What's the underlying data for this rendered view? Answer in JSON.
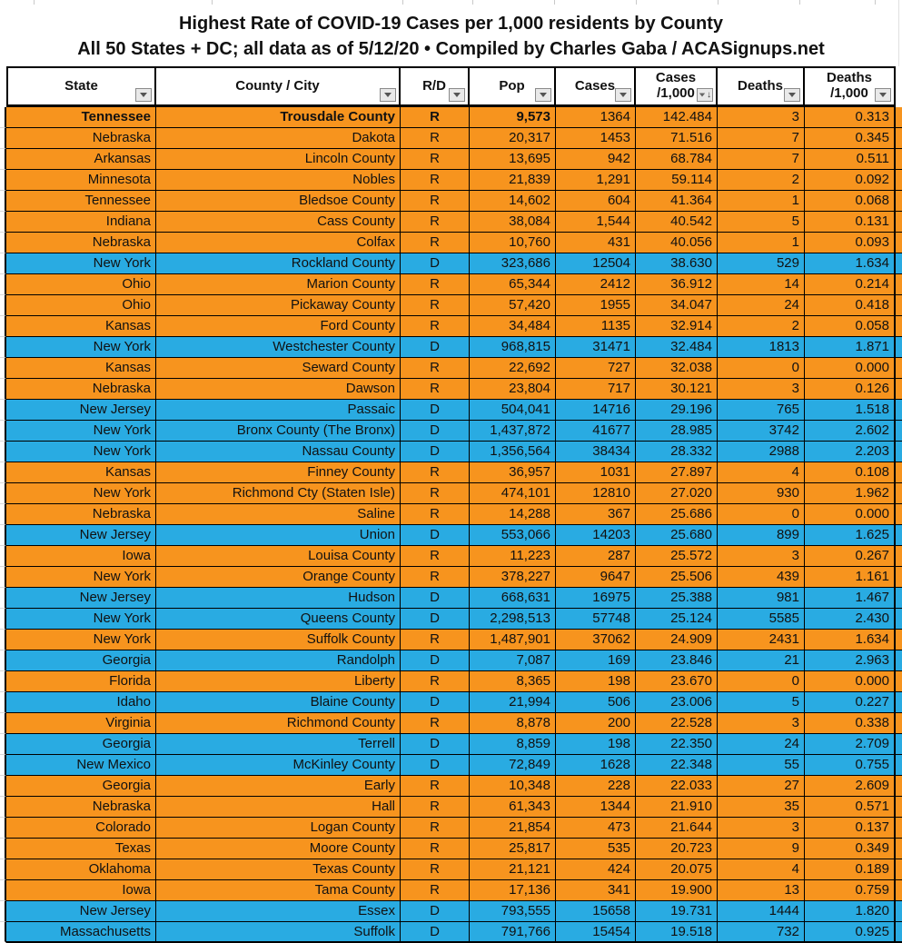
{
  "title": {
    "line1": "Highest Rate of COVID-19 Cases per 1,000 residents by County",
    "line2": "All 50 States + DC; all data as of 5/12/20  • Compiled by Charles Gaba / ACASignups.net"
  },
  "colors": {
    "republican_row": "#F7941E",
    "democrat_row": "#29ABE2",
    "grid_border": "#000000",
    "faint_gridline": "#D9D9D9"
  },
  "table": {
    "columns": [
      {
        "label": "State"
      },
      {
        "label": "County / City"
      },
      {
        "label": "R/D"
      },
      {
        "label": "Pop"
      },
      {
        "label": "Cases"
      },
      {
        "label": "Cases",
        "label2": "/1,000",
        "sorted": "descending"
      },
      {
        "label": "Deaths"
      },
      {
        "label": "Deaths",
        "label2": "/1,000"
      }
    ],
    "rows": [
      {
        "state": "Tennessee",
        "county": "Trousdale County",
        "rd": "R",
        "pop": "9,573",
        "cases": "1364",
        "cases_per_1000": "142.484",
        "deaths": "3",
        "deaths_per_1000": "0.313",
        "bold": true
      },
      {
        "state": "Nebraska",
        "county": "Dakota",
        "rd": "R",
        "pop": "20,317",
        "cases": "1453",
        "cases_per_1000": "71.516",
        "deaths": "7",
        "deaths_per_1000": "0.345"
      },
      {
        "state": "Arkansas",
        "county": "Lincoln County",
        "rd": "R",
        "pop": "13,695",
        "cases": "942",
        "cases_per_1000": "68.784",
        "deaths": "7",
        "deaths_per_1000": "0.511"
      },
      {
        "state": "Minnesota",
        "county": "Nobles",
        "rd": "R",
        "pop": "21,839",
        "cases": "1,291",
        "cases_per_1000": "59.114",
        "deaths": "2",
        "deaths_per_1000": "0.092"
      },
      {
        "state": "Tennessee",
        "county": "Bledsoe County",
        "rd": "R",
        "pop": "14,602",
        "cases": "604",
        "cases_per_1000": "41.364",
        "deaths": "1",
        "deaths_per_1000": "0.068"
      },
      {
        "state": "Indiana",
        "county": "Cass County",
        "rd": "R",
        "pop": "38,084",
        "cases": "1,544",
        "cases_per_1000": "40.542",
        "deaths": "5",
        "deaths_per_1000": "0.131"
      },
      {
        "state": "Nebraska",
        "county": "Colfax",
        "rd": "R",
        "pop": "10,760",
        "cases": "431",
        "cases_per_1000": "40.056",
        "deaths": "1",
        "deaths_per_1000": "0.093"
      },
      {
        "state": "New York",
        "county": "Rockland County",
        "rd": "D",
        "pop": "323,686",
        "cases": "12504",
        "cases_per_1000": "38.630",
        "deaths": "529",
        "deaths_per_1000": "1.634"
      },
      {
        "state": "Ohio",
        "county": "Marion County",
        "rd": "R",
        "pop": "65,344",
        "cases": "2412",
        "cases_per_1000": "36.912",
        "deaths": "14",
        "deaths_per_1000": "0.214"
      },
      {
        "state": "Ohio",
        "county": "Pickaway County",
        "rd": "R",
        "pop": "57,420",
        "cases": "1955",
        "cases_per_1000": "34.047",
        "deaths": "24",
        "deaths_per_1000": "0.418"
      },
      {
        "state": "Kansas",
        "county": "Ford County",
        "rd": "R",
        "pop": "34,484",
        "cases": "1135",
        "cases_per_1000": "32.914",
        "deaths": "2",
        "deaths_per_1000": "0.058"
      },
      {
        "state": "New York",
        "county": "Westchester County",
        "rd": "D",
        "pop": "968,815",
        "cases": "31471",
        "cases_per_1000": "32.484",
        "deaths": "1813",
        "deaths_per_1000": "1.871"
      },
      {
        "state": "Kansas",
        "county": "Seward County",
        "rd": "R",
        "pop": "22,692",
        "cases": "727",
        "cases_per_1000": "32.038",
        "deaths": "0",
        "deaths_per_1000": "0.000"
      },
      {
        "state": "Nebraska",
        "county": "Dawson",
        "rd": "R",
        "pop": "23,804",
        "cases": "717",
        "cases_per_1000": "30.121",
        "deaths": "3",
        "deaths_per_1000": "0.126"
      },
      {
        "state": "New Jersey",
        "county": "Passaic",
        "rd": "D",
        "pop": "504,041",
        "cases": "14716",
        "cases_per_1000": "29.196",
        "deaths": "765",
        "deaths_per_1000": "1.518"
      },
      {
        "state": "New York",
        "county": "Bronx County (The Bronx)",
        "rd": "D",
        "pop": "1,437,872",
        "cases": "41677",
        "cases_per_1000": "28.985",
        "deaths": "3742",
        "deaths_per_1000": "2.602"
      },
      {
        "state": "New York",
        "county": "Nassau County",
        "rd": "D",
        "pop": "1,356,564",
        "cases": "38434",
        "cases_per_1000": "28.332",
        "deaths": "2988",
        "deaths_per_1000": "2.203"
      },
      {
        "state": "Kansas",
        "county": "Finney County",
        "rd": "R",
        "pop": "36,957",
        "cases": "1031",
        "cases_per_1000": "27.897",
        "deaths": "4",
        "deaths_per_1000": "0.108"
      },
      {
        "state": "New York",
        "county": "Richmond Cty (Staten Isle)",
        "rd": "R",
        "pop": "474,101",
        "cases": "12810",
        "cases_per_1000": "27.020",
        "deaths": "930",
        "deaths_per_1000": "1.962"
      },
      {
        "state": "Nebraska",
        "county": "Saline",
        "rd": "R",
        "pop": "14,288",
        "cases": "367",
        "cases_per_1000": "25.686",
        "deaths": "0",
        "deaths_per_1000": "0.000"
      },
      {
        "state": "New Jersey",
        "county": "Union",
        "rd": "D",
        "pop": "553,066",
        "cases": "14203",
        "cases_per_1000": "25.680",
        "deaths": "899",
        "deaths_per_1000": "1.625"
      },
      {
        "state": "Iowa",
        "county": "Louisa County",
        "rd": "R",
        "pop": "11,223",
        "cases": "287",
        "cases_per_1000": "25.572",
        "deaths": "3",
        "deaths_per_1000": "0.267"
      },
      {
        "state": "New York",
        "county": "Orange County",
        "rd": "R",
        "pop": "378,227",
        "cases": "9647",
        "cases_per_1000": "25.506",
        "deaths": "439",
        "deaths_per_1000": "1.161"
      },
      {
        "state": "New Jersey",
        "county": "Hudson",
        "rd": "D",
        "pop": "668,631",
        "cases": "16975",
        "cases_per_1000": "25.388",
        "deaths": "981",
        "deaths_per_1000": "1.467"
      },
      {
        "state": "New York",
        "county": "Queens County",
        "rd": "D",
        "pop": "2,298,513",
        "cases": "57748",
        "cases_per_1000": "25.124",
        "deaths": "5585",
        "deaths_per_1000": "2.430"
      },
      {
        "state": "New York",
        "county": "Suffolk County",
        "rd": "R",
        "pop": "1,487,901",
        "cases": "37062",
        "cases_per_1000": "24.909",
        "deaths": "2431",
        "deaths_per_1000": "1.634"
      },
      {
        "state": "Georgia",
        "county": "Randolph",
        "rd": "D",
        "pop": "7,087",
        "cases": "169",
        "cases_per_1000": "23.846",
        "deaths": "21",
        "deaths_per_1000": "2.963"
      },
      {
        "state": "Florida",
        "county": "Liberty",
        "rd": "R",
        "pop": "8,365",
        "cases": "198",
        "cases_per_1000": "23.670",
        "deaths": "0",
        "deaths_per_1000": "0.000"
      },
      {
        "state": "Idaho",
        "county": "Blaine County",
        "rd": "D",
        "pop": "21,994",
        "cases": "506",
        "cases_per_1000": "23.006",
        "deaths": "5",
        "deaths_per_1000": "0.227"
      },
      {
        "state": "Virginia",
        "county": "Richmond County",
        "rd": "R",
        "pop": "8,878",
        "cases": "200",
        "cases_per_1000": "22.528",
        "deaths": "3",
        "deaths_per_1000": "0.338"
      },
      {
        "state": "Georgia",
        "county": "Terrell",
        "rd": "D",
        "pop": "8,859",
        "cases": "198",
        "cases_per_1000": "22.350",
        "deaths": "24",
        "deaths_per_1000": "2.709"
      },
      {
        "state": "New Mexico",
        "county": "McKinley County",
        "rd": "D",
        "pop": "72,849",
        "cases": "1628",
        "cases_per_1000": "22.348",
        "deaths": "55",
        "deaths_per_1000": "0.755"
      },
      {
        "state": "Georgia",
        "county": "Early",
        "rd": "R",
        "pop": "10,348",
        "cases": "228",
        "cases_per_1000": "22.033",
        "deaths": "27",
        "deaths_per_1000": "2.609"
      },
      {
        "state": "Nebraska",
        "county": "Hall",
        "rd": "R",
        "pop": "61,343",
        "cases": "1344",
        "cases_per_1000": "21.910",
        "deaths": "35",
        "deaths_per_1000": "0.571"
      },
      {
        "state": "Colorado",
        "county": "Logan County",
        "rd": "R",
        "pop": "21,854",
        "cases": "473",
        "cases_per_1000": "21.644",
        "deaths": "3",
        "deaths_per_1000": "0.137"
      },
      {
        "state": "Texas",
        "county": "Moore County",
        "rd": "R",
        "pop": "25,817",
        "cases": "535",
        "cases_per_1000": "20.723",
        "deaths": "9",
        "deaths_per_1000": "0.349"
      },
      {
        "state": "Oklahoma",
        "county": "Texas County",
        "rd": "R",
        "pop": "21,121",
        "cases": "424",
        "cases_per_1000": "20.075",
        "deaths": "4",
        "deaths_per_1000": "0.189"
      },
      {
        "state": "Iowa",
        "county": "Tama County",
        "rd": "R",
        "pop": "17,136",
        "cases": "341",
        "cases_per_1000": "19.900",
        "deaths": "13",
        "deaths_per_1000": "0.759"
      },
      {
        "state": "New Jersey",
        "county": "Essex",
        "rd": "D",
        "pop": "793,555",
        "cases": "15658",
        "cases_per_1000": "19.731",
        "deaths": "1444",
        "deaths_per_1000": "1.820"
      },
      {
        "state": "Massachusetts",
        "county": "Suffolk",
        "rd": "D",
        "pop": "791,766",
        "cases": "15454",
        "cases_per_1000": "19.518",
        "deaths": "732",
        "deaths_per_1000": "0.925"
      }
    ]
  }
}
